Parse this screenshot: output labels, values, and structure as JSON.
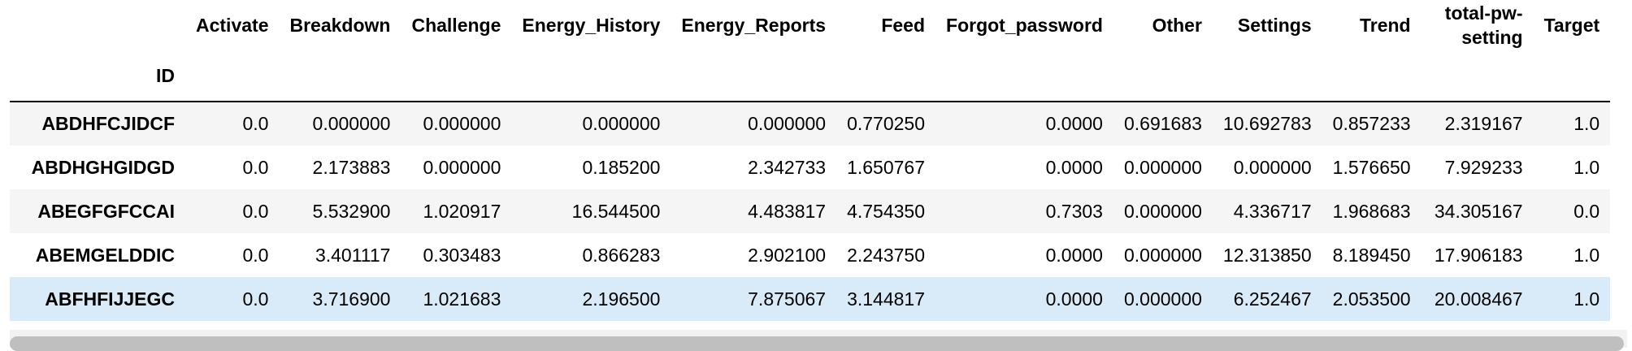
{
  "table": {
    "index_name": "ID",
    "columns": [
      "Activate",
      "Breakdown",
      "Challenge",
      "Energy_History",
      "Energy_Reports",
      "Feed",
      "Forgot_password",
      "Other",
      "Settings",
      "Trend",
      "total-pw-setting",
      "Target"
    ],
    "rows": [
      {
        "id": "ABDHFCJIDCF",
        "values": [
          "0.0",
          "0.000000",
          "0.000000",
          "0.000000",
          "0.000000",
          "0.770250",
          "0.0000",
          "0.691683",
          "10.692783",
          "0.857233",
          "2.319167",
          "1.0"
        ]
      },
      {
        "id": "ABDHGHGIDGD",
        "values": [
          "0.0",
          "2.173883",
          "0.000000",
          "0.185200",
          "2.342733",
          "1.650767",
          "0.0000",
          "0.000000",
          "0.000000",
          "1.576650",
          "7.929233",
          "1.0"
        ]
      },
      {
        "id": "ABEGFGFCCAI",
        "values": [
          "0.0",
          "5.532900",
          "1.020917",
          "16.544500",
          "4.483817",
          "4.754350",
          "0.7303",
          "0.000000",
          "4.336717",
          "1.968683",
          "34.305167",
          "0.0"
        ]
      },
      {
        "id": "ABEMGELDDIC",
        "values": [
          "0.0",
          "3.401117",
          "0.303483",
          "0.866283",
          "2.902100",
          "2.243750",
          "0.0000",
          "0.000000",
          "12.313850",
          "8.189450",
          "17.906183",
          "1.0"
        ]
      },
      {
        "id": "ABFHFIJJEGC",
        "values": [
          "0.0",
          "3.716900",
          "1.021683",
          "2.196500",
          "7.875067",
          "3.144817",
          "0.0000",
          "0.000000",
          "6.252467",
          "2.053500",
          "20.008467",
          "1.0"
        ]
      }
    ]
  },
  "colors": {
    "row_striped": "#f5f5f5",
    "row_hover": "#d9ebf8",
    "header_rule": "#000000",
    "scrollbar_thumb": "#bfbfbf"
  }
}
